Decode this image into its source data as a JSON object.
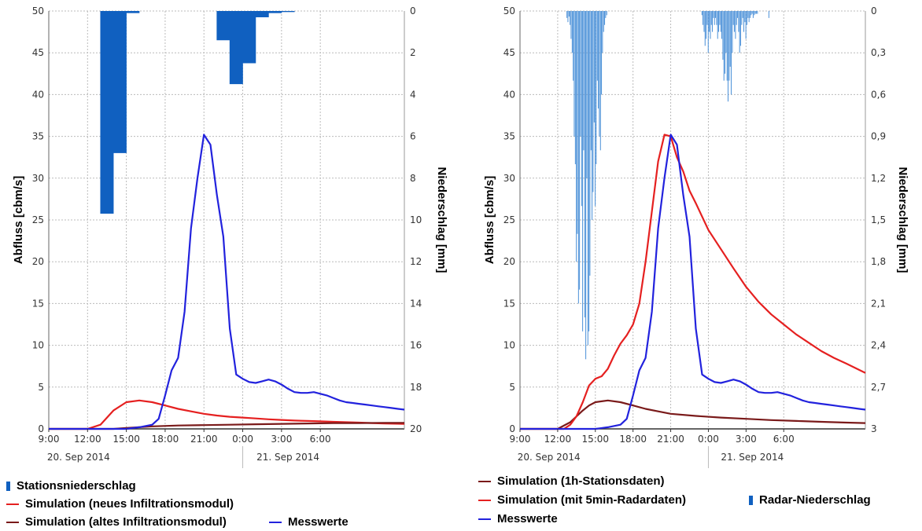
{
  "chart_data": [
    {
      "type": "line+bar",
      "ylabel": "Abfluss [cbm/s]",
      "y2label": "Niederschlag [mm]",
      "ylim": [
        0,
        50
      ],
      "y2lim": [
        0,
        20
      ],
      "y_ticks": [
        "0",
        "5",
        "10",
        "15",
        "20",
        "25",
        "30",
        "35",
        "40",
        "45",
        "50"
      ],
      "y2_ticks": [
        "0",
        "2",
        "4",
        "6",
        "8",
        "10",
        "12",
        "14",
        "16",
        "18",
        "20"
      ],
      "x_ticks": [
        "9:00",
        "12:00",
        "15:00",
        "18:00",
        "21:00",
        "0:00",
        "3:00",
        "6:00"
      ],
      "date_labels": [
        "20. Sep 2014",
        "21. Sep 2014"
      ],
      "xlim_hours": [
        0,
        27.5
      ],
      "grid": true,
      "legend_position": "bottom",
      "bars": {
        "name": "Stationsniederschlag",
        "color": "#1060c0",
        "x": [
          4.5,
          5.5,
          6.5,
          13.5,
          14.5,
          15.5,
          16.5,
          17.5,
          18.5
        ],
        "values": [
          9.7,
          6.8,
          0.1,
          1.4,
          3.5,
          2.5,
          0.3,
          0.1,
          0.05
        ]
      },
      "series": [
        {
          "name": "Simulation (neues Infiltrationsmodul)",
          "color": "#e52020",
          "x": [
            0,
            3,
            4,
            5,
            6,
            7,
            8,
            9,
            10,
            11,
            12,
            13,
            14,
            15,
            16,
            17,
            18,
            19,
            20,
            21,
            22,
            23,
            24,
            25,
            26,
            27.5
          ],
          "y": [
            0,
            0,
            0.5,
            2.2,
            3.2,
            3.4,
            3.2,
            2.8,
            2.4,
            2.1,
            1.8,
            1.6,
            1.45,
            1.35,
            1.25,
            1.15,
            1.07,
            1,
            0.95,
            0.9,
            0.85,
            0.8,
            0.75,
            0.7,
            0.65,
            0.6
          ]
        },
        {
          "name": "Simulation (altes Infiltrationsmodul)",
          "color": "#7a1a1a",
          "x": [
            0,
            5,
            6,
            8,
            10,
            12,
            14,
            16,
            18,
            20,
            22,
            24,
            26,
            27.5
          ],
          "y": [
            0,
            0,
            0.1,
            0.3,
            0.4,
            0.45,
            0.5,
            0.55,
            0.6,
            0.65,
            0.7,
            0.7,
            0.72,
            0.72
          ]
        },
        {
          "name": "Messwerte",
          "color": "#2222dd",
          "x": [
            0,
            6,
            7,
            8,
            8.5,
            9,
            9.5,
            10,
            10.5,
            11,
            11.5,
            12,
            12.5,
            13,
            13.5,
            14,
            14.5,
            15,
            15.5,
            16,
            16.5,
            17,
            17.5,
            18,
            18.5,
            19,
            19.5,
            20,
            20.5,
            21,
            21.5,
            22,
            22.5,
            23,
            23.5,
            24,
            24.5,
            25,
            25.5,
            26,
            26.5,
            27,
            27.5
          ],
          "y": [
            0,
            0,
            0.2,
            0.5,
            1.2,
            4,
            7,
            8.5,
            14,
            24,
            30,
            35.2,
            34,
            28,
            23,
            12,
            6.5,
            6,
            5.6,
            5.5,
            5.7,
            5.9,
            5.7,
            5.3,
            4.8,
            4.4,
            4.3,
            4.3,
            4.4,
            4.2,
            4,
            3.7,
            3.4,
            3.2,
            3.1,
            3,
            2.9,
            2.8,
            2.7,
            2.6,
            2.5,
            2.4,
            2.3
          ]
        }
      ]
    },
    {
      "type": "line+bar",
      "ylabel": "Abfluss [cbm/s]",
      "y2label": "Niederschlag [mm]",
      "ylim": [
        0,
        50
      ],
      "y2lim": [
        0,
        3
      ],
      "y_ticks": [
        "0",
        "5",
        "10",
        "15",
        "20",
        "25",
        "30",
        "35",
        "40",
        "45",
        "50"
      ],
      "y2_ticks": [
        "0",
        "0,3",
        "0,6",
        "0,9",
        "1,2",
        "1,5",
        "1,8",
        "2,1",
        "2,4",
        "2,7",
        "3"
      ],
      "x_ticks": [
        "9:00",
        "12:00",
        "15:00",
        "18:00",
        "21:00",
        "0:00",
        "3:00",
        "6:00"
      ],
      "date_labels": [
        "20. Sep 2014",
        "21. Sep 2014"
      ],
      "xlim_hours": [
        0,
        27.5
      ],
      "grid": true,
      "legend_position": "bottom",
      "bars": {
        "name": "Radar-Niederschlag",
        "color": "#4a90d8",
        "x": [
          3.75,
          3.83,
          3.92,
          4.0,
          4.08,
          4.17,
          4.25,
          4.33,
          4.42,
          4.5,
          4.58,
          4.67,
          4.75,
          4.83,
          4.92,
          5.0,
          5.08,
          5.17,
          5.25,
          5.33,
          5.42,
          5.5,
          5.58,
          5.67,
          5.75,
          5.83,
          5.92,
          6.0,
          6.08,
          6.17,
          6.25,
          6.33,
          6.42,
          6.5,
          6.58,
          6.67,
          6.75,
          6.83,
          6.92,
          14.5,
          14.58,
          14.67,
          14.75,
          14.83,
          14.92,
          15.0,
          15.08,
          15.17,
          15.25,
          15.33,
          15.42,
          15.5,
          15.58,
          15.67,
          15.75,
          15.83,
          15.92,
          16.0,
          16.08,
          16.17,
          16.25,
          16.33,
          16.42,
          16.5,
          16.58,
          16.67,
          16.75,
          16.83,
          16.92,
          17.0,
          17.08,
          17.17,
          17.25,
          17.33,
          17.42,
          17.5,
          17.58,
          17.67,
          17.75,
          17.83,
          17.92,
          18.0,
          18.08,
          18.17,
          18.25,
          18.33,
          18.42,
          18.5,
          18.58,
          18.67,
          18.75,
          18.83,
          18.92,
          19.83
        ],
        "values": [
          0.05,
          0.08,
          0.04,
          0.1,
          0.2,
          0.3,
          0.5,
          0.9,
          1.1,
          1.8,
          1.6,
          2.1,
          2.0,
          0.9,
          1.4,
          2.3,
          1.0,
          2.2,
          2.5,
          1.2,
          2.4,
          2.3,
          1.9,
          1.0,
          1.5,
          1.3,
          0.8,
          1.4,
          1.1,
          0.5,
          0.7,
          0.9,
          1.0,
          0.6,
          0.3,
          0.15,
          0.1,
          0.05,
          0.03,
          0.03,
          0.1,
          0.15,
          0.25,
          0.2,
          0.1,
          0.3,
          0.15,
          0.2,
          0.1,
          0.15,
          0.05,
          0.1,
          0.05,
          0.1,
          0.2,
          0.15,
          0.1,
          0.15,
          0.2,
          0.35,
          0.5,
          0.45,
          0.3,
          0.5,
          0.65,
          0.5,
          0.4,
          0.6,
          0.3,
          0.1,
          0.15,
          0.2,
          0.1,
          0.05,
          0.15,
          0.3,
          0.25,
          0.1,
          0.05,
          0.15,
          0.08,
          0.2,
          0.1,
          0.05,
          0.08,
          0.05,
          0.03,
          0.02,
          0.05,
          0.03,
          0.02,
          0.02,
          0.02,
          0.05
        ]
      },
      "series": [
        {
          "name": "Simulation (1h-Stationsdaten)",
          "color": "#7a1a1a",
          "x": [
            0,
            3,
            4,
            5,
            5.5,
            6,
            6.5,
            7,
            8,
            9,
            10,
            11,
            12,
            14,
            16,
            18,
            20,
            22,
            24,
            26,
            27.5
          ],
          "y": [
            0,
            0,
            0.8,
            2.2,
            2.8,
            3.2,
            3.3,
            3.4,
            3.2,
            2.8,
            2.4,
            2.1,
            1.8,
            1.55,
            1.35,
            1.2,
            1.05,
            0.95,
            0.85,
            0.75,
            0.7
          ]
        },
        {
          "name": "Simulation (mit 5min-Radardaten)",
          "color": "#e52020",
          "x": [
            0,
            3.5,
            4,
            4.5,
            5,
            5.5,
            6,
            6.5,
            7,
            7.5,
            8,
            8.5,
            9,
            9.5,
            10,
            10.5,
            11,
            11.5,
            12,
            12.5,
            13,
            13.5,
            14,
            15,
            16,
            17,
            18,
            19,
            20,
            21,
            22,
            23,
            24,
            25,
            26,
            27.5
          ],
          "y": [
            0,
            0,
            0.5,
            1.5,
            3.2,
            5.2,
            6,
            6.3,
            7.2,
            8.8,
            10.2,
            11.2,
            12.5,
            15,
            20,
            26,
            32,
            35.2,
            35,
            32.5,
            30.8,
            28.5,
            27,
            23.8,
            21.5,
            19.2,
            17,
            15.2,
            13.7,
            12.5,
            11.3,
            10.3,
            9.3,
            8.5,
            7.8,
            6.7
          ]
        },
        {
          "name": "Messwerte",
          "color": "#2222dd",
          "x": [
            0,
            6,
            7,
            8,
            8.5,
            9,
            9.5,
            10,
            10.5,
            11,
            11.5,
            12,
            12.5,
            13,
            13.5,
            14,
            14.5,
            15,
            15.5,
            16,
            16.5,
            17,
            17.5,
            18,
            18.5,
            19,
            19.5,
            20,
            20.5,
            21,
            21.5,
            22,
            22.5,
            23,
            23.5,
            24,
            24.5,
            25,
            25.5,
            26,
            26.5,
            27,
            27.5
          ],
          "y": [
            0,
            0,
            0.2,
            0.5,
            1.2,
            4,
            7,
            8.5,
            14,
            24,
            30,
            35.2,
            34,
            28,
            23,
            12,
            6.5,
            6,
            5.6,
            5.5,
            5.7,
            5.9,
            5.7,
            5.3,
            4.8,
            4.4,
            4.3,
            4.3,
            4.4,
            4.2,
            4,
            3.7,
            3.4,
            3.2,
            3.1,
            3,
            2.9,
            2.8,
            2.7,
            2.6,
            2.5,
            2.4,
            2.3
          ]
        }
      ]
    }
  ],
  "legend_left": {
    "bar": "Stationsniederschlag",
    "line1": "Simulation (neues Infiltrationsmodul)",
    "line2": "Simulation (altes Infiltrationsmodul)",
    "line3": "Messwerte"
  },
  "legend_right": {
    "line1": "Simulation (1h-Stationsdaten)",
    "line2": "Simulation (mit 5min-Radardaten)",
    "bar": "Radar-Niederschlag",
    "line3": "Messwerte"
  }
}
